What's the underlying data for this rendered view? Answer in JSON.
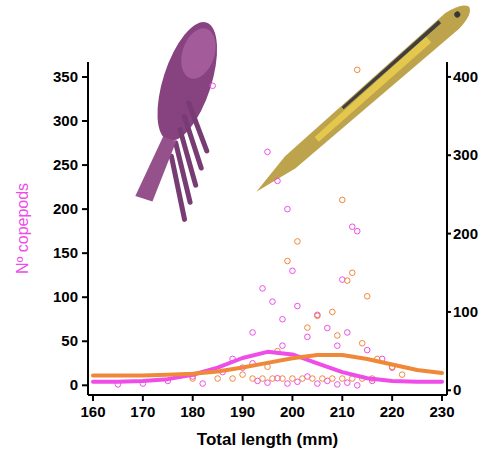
{
  "chart_data": {
    "type": "scatter",
    "x_label": "Total length (mm)",
    "y_label": "Nº copepods",
    "xlim": [
      159,
      231
    ],
    "xticks": [
      160,
      170,
      180,
      190,
      200,
      210,
      220,
      230
    ],
    "ylim": [
      -11,
      367
    ],
    "yticks": [
      0,
      50,
      100,
      150,
      200,
      250,
      300,
      350
    ],
    "y2lim": [
      -6,
      419
    ],
    "y2ticks": [
      0,
      100,
      200,
      300,
      400
    ],
    "grid": false,
    "series": [
      {
        "type": "scatter",
        "color": "#ee4de8",
        "marker": "circle",
        "axis": "y",
        "x": [
          184,
          195,
          197,
          199,
          194,
          196,
          192,
          198,
          200,
          201,
          203,
          205,
          207,
          209,
          211,
          213,
          212,
          210,
          215,
          218,
          220,
          188,
          190,
          186,
          180,
          175,
          170,
          165,
          193,
          195,
          197,
          199,
          201,
          203,
          205,
          207,
          209,
          211,
          213,
          216,
          182,
          192,
          198
        ],
        "values": [
          340,
          265,
          232,
          200,
          110,
          95,
          60,
          75,
          130,
          90,
          55,
          80,
          65,
          45,
          60,
          175,
          180,
          120,
          40,
          30,
          20,
          30,
          20,
          15,
          10,
          5,
          2,
          1,
          5,
          3,
          8,
          2,
          4,
          10,
          2,
          5,
          1,
          3,
          0,
          5,
          2,
          25,
          45
        ]
      },
      {
        "type": "scatter",
        "color": "#f0883a",
        "marker": "circle",
        "axis": "y2",
        "x": [
          213,
          210,
          201,
          199,
          212,
          211,
          215,
          208,
          205,
          203,
          209,
          214,
          217,
          220,
          222,
          197,
          195,
          190,
          185,
          180,
          188,
          192,
          194,
          196,
          198,
          200,
          202,
          204,
          206,
          208,
          210,
          212,
          214,
          216
        ],
        "values": [
          409,
          243,
          190,
          165,
          150,
          140,
          120,
          100,
          95,
          80,
          70,
          60,
          40,
          30,
          20,
          50,
          30,
          20,
          15,
          15,
          15,
          15,
          15,
          15,
          15,
          15,
          15,
          15,
          15,
          15,
          15,
          15,
          15,
          15
        ]
      },
      {
        "type": "line",
        "color": "#ee4de8",
        "line_style": "solid",
        "axis": "y",
        "x": [
          160,
          165,
          170,
          175,
          180,
          185,
          190,
          195,
          200,
          205,
          210,
          215,
          220,
          225,
          230
        ],
        "values": [
          4,
          4,
          5,
          7,
          12,
          20,
          31,
          38,
          35,
          25,
          15,
          8,
          5,
          4,
          4
        ]
      },
      {
        "type": "line",
        "color": "#f0883a",
        "line_style": "solid",
        "axis": "y2",
        "x": [
          160,
          165,
          170,
          175,
          180,
          185,
          190,
          195,
          200,
          205,
          210,
          215,
          220,
          225,
          230
        ],
        "values": [
          19,
          19,
          19,
          20,
          21,
          24,
          29,
          35,
          41,
          45,
          45,
          40,
          33,
          26,
          22
        ]
      }
    ]
  }
}
